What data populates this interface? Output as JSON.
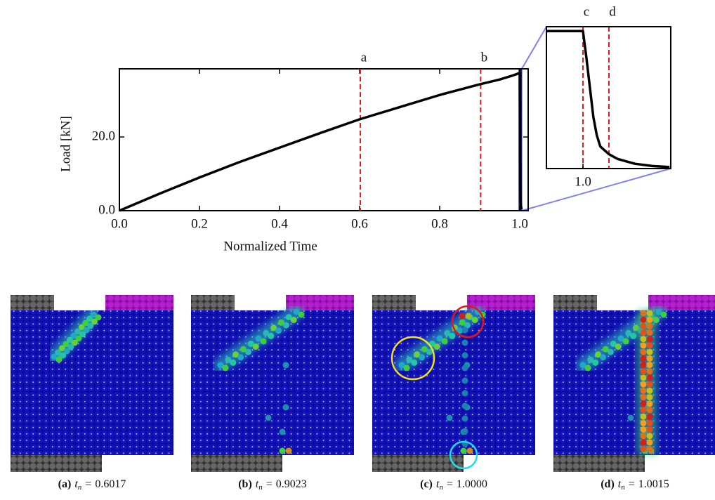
{
  "chart_data": {
    "type": "line",
    "xlabel": "Normalized Time",
    "ylabel": "Load [kN]",
    "xlim": [
      0,
      1.021
    ],
    "ylim": [
      0,
      38.5
    ],
    "xticks": [
      {
        "value": 0,
        "label": "0.0"
      },
      {
        "value": 0.2,
        "label": "0.2"
      },
      {
        "value": 0.4,
        "label": "0.4"
      },
      {
        "value": 0.6,
        "label": "0.6"
      },
      {
        "value": 0.8,
        "label": "0.8"
      },
      {
        "value": 1,
        "label": "1.0"
      }
    ],
    "yticks": [
      {
        "value": 0,
        "label": "0.0"
      },
      {
        "value": 20,
        "label": "20.0"
      }
    ],
    "series": [
      {
        "color": "#000000",
        "x": [
          0,
          0.1,
          0.2,
          0.3,
          0.4,
          0.5,
          0.6,
          0.7,
          0.8,
          0.9,
          0.95,
          0.98,
          0.998,
          1.0,
          1.0002,
          1.0004,
          1.0006,
          1.0008,
          1.001,
          1.0015,
          1.002,
          1.003,
          1.004,
          1.005
        ],
        "values": [
          0,
          4.6,
          9.0,
          13.2,
          17.1,
          21,
          24.8,
          28.1,
          31.4,
          34.3,
          35.6,
          36.6,
          37.3,
          37.3,
          30,
          22,
          14,
          9,
          6,
          3.9,
          2.6,
          1.3,
          0.7,
          0.4
        ]
      }
    ],
    "marker_color": "#e41a1c",
    "markers": [
      {
        "letter": "a",
        "x": 0.6017
      },
      {
        "letter": "b",
        "x": 0.9023
      },
      {
        "letter": "c",
        "x": 1.0
      },
      {
        "letter": "d",
        "x": 1.0015
      }
    ],
    "inset": {
      "xlim": [
        0.99789,
        1.00507
      ],
      "ylim": [
        0,
        38.5
      ],
      "xticks": [
        {
          "value": 1,
          "label": "1.0"
        }
      ],
      "markers": [
        2,
        3
      ]
    },
    "main_markers": [
      0,
      1
    ]
  },
  "panels": [
    {
      "tag": "(a)",
      "symbol": "t",
      "subscript": "n",
      "relation": "=",
      "time": "0.6017"
    },
    {
      "tag": "(b)",
      "symbol": "t",
      "subscript": "n",
      "relation": "=",
      "time": "0.9023"
    },
    {
      "tag": "(c)",
      "symbol": "t",
      "subscript": "n",
      "relation": "=",
      "time": "1.0000"
    },
    {
      "tag": "(d)",
      "symbol": "t",
      "subscript": "n",
      "relation": "=",
      "time": "1.0015"
    }
  ]
}
